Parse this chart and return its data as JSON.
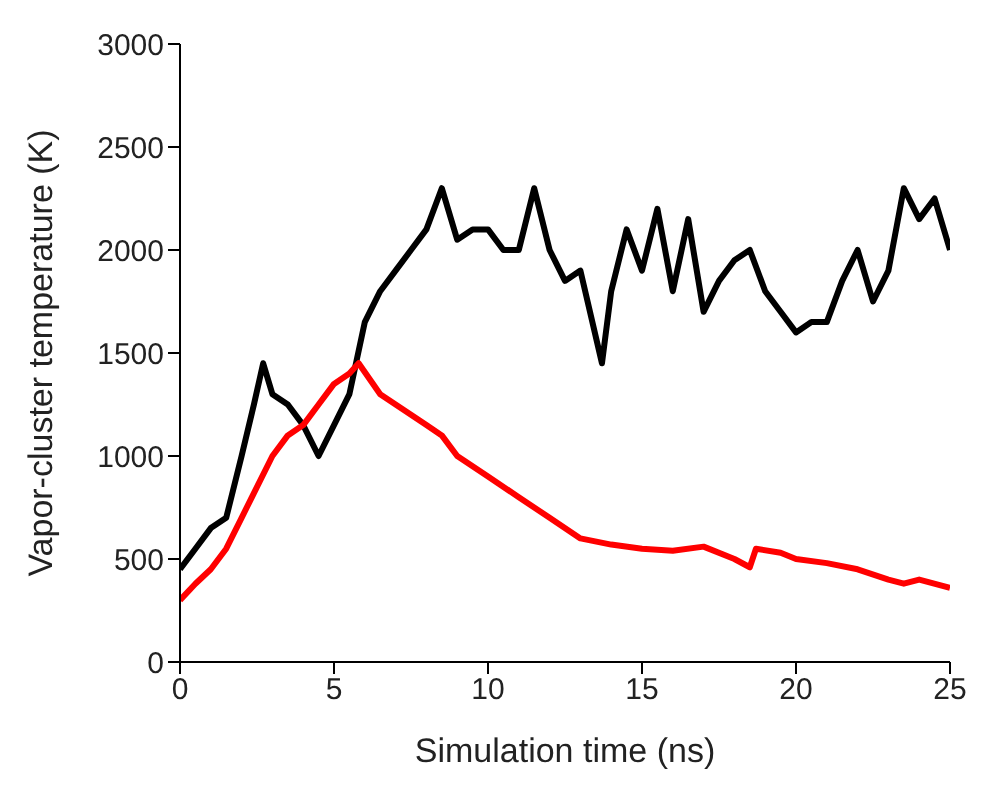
{
  "chart_data": {
    "type": "line",
    "xlabel": "Simulation time (ns)",
    "ylabel": "Vapor-cluster temperature (K)",
    "xlim": [
      0,
      25
    ],
    "xticks": [
      0,
      5,
      10,
      15,
      20,
      25
    ],
    "ylim": [
      0,
      3000
    ],
    "yticks": [
      0,
      500,
      1000,
      1500,
      2000,
      2500,
      3000
    ],
    "grid": false,
    "legend": false,
    "marker": "none",
    "line_style": "solid",
    "series": [
      {
        "color": "#000000",
        "x": [
          0,
          0.5,
          1,
          1.5,
          2,
          2.4,
          2.7,
          3,
          3.5,
          4,
          4.5,
          5,
          5.5,
          6,
          6.5,
          7,
          7.5,
          8,
          8.5,
          9,
          9.5,
          10,
          10.5,
          11,
          11.5,
          12,
          12.5,
          13,
          13.7,
          14,
          14.5,
          15,
          15.5,
          16,
          16.5,
          17,
          17.5,
          18,
          18.5,
          19,
          19.5,
          20,
          20.5,
          21,
          21.5,
          22,
          22.5,
          23,
          23.5,
          24,
          24.5,
          25
        ],
        "values": [
          450,
          550,
          650,
          700,
          1000,
          1250,
          1450,
          1300,
          1250,
          1150,
          1000,
          1150,
          1300,
          1650,
          1800,
          1900,
          2000,
          2100,
          2300,
          2050,
          2100,
          2100,
          2000,
          2000,
          2300,
          2000,
          1850,
          1900,
          1450,
          1800,
          2100,
          1900,
          2200,
          1800,
          2150,
          1700,
          1850,
          1950,
          2000,
          1800,
          1700,
          1600,
          1650,
          1650,
          1850,
          2000,
          1750,
          1900,
          2300,
          2150,
          2250,
          2000
        ]
      },
      {
        "color": "#ff0000",
        "x": [
          0,
          0.5,
          1,
          1.5,
          2,
          2.5,
          3,
          3.5,
          4,
          4.5,
          5,
          5.5,
          5.8,
          6.5,
          7,
          7.5,
          8,
          8.5,
          9,
          10,
          11,
          12,
          13,
          14,
          15,
          16,
          17,
          18,
          18.5,
          18.7,
          19.5,
          20,
          21,
          22,
          23,
          23.5,
          24,
          25
        ],
        "values": [
          300,
          380,
          450,
          550,
          700,
          850,
          1000,
          1100,
          1150,
          1250,
          1350,
          1400,
          1450,
          1300,
          1250,
          1200,
          1150,
          1100,
          1000,
          900,
          800,
          700,
          600,
          570,
          550,
          540,
          560,
          500,
          460,
          550,
          530,
          500,
          480,
          450,
          400,
          380,
          400,
          360
        ]
      }
    ]
  }
}
